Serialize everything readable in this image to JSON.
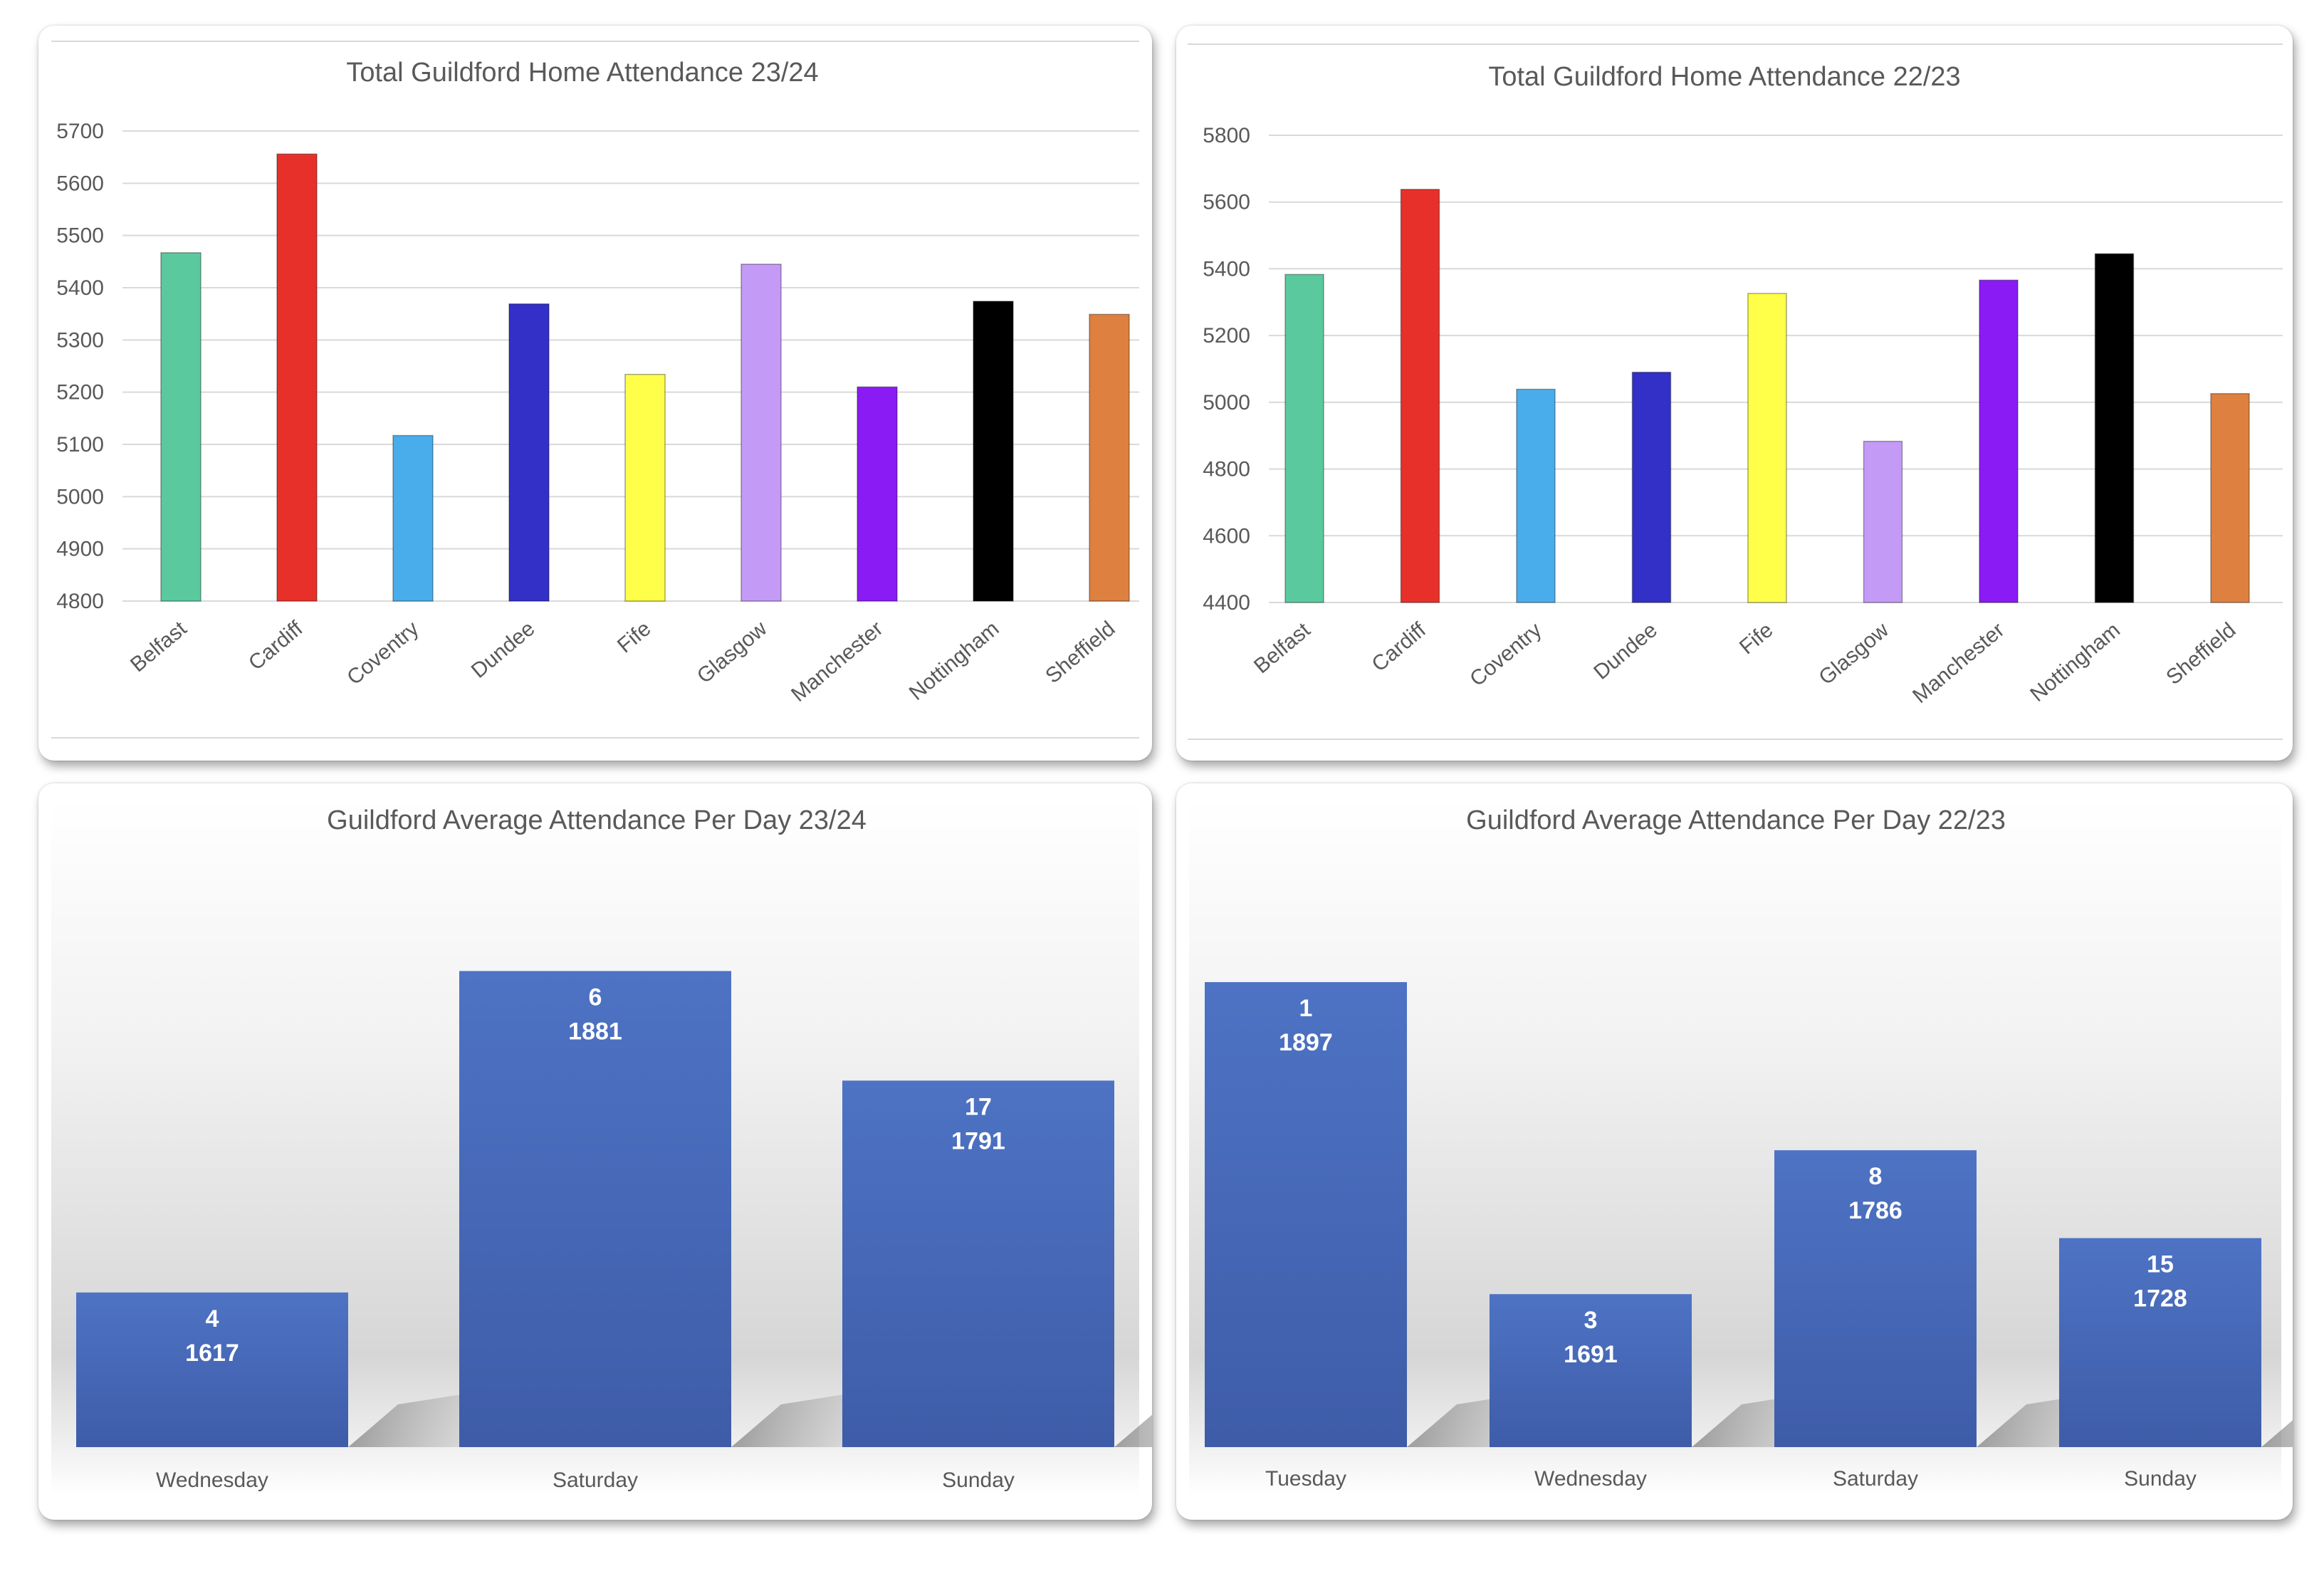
{
  "chart_data": [
    {
      "type": "bar",
      "title": "Total Guildford Home Attendance 23/24",
      "categories": [
        "Belfast",
        "Cardiff",
        "Coventry",
        "Dundee",
        "Fife",
        "Glasgow",
        "Manchester",
        "Nottingham",
        "Sheffield"
      ],
      "values": [
        5467,
        5656,
        5117,
        5369,
        5234,
        5445,
        5210,
        5374,
        5349
      ],
      "colors": [
        "#5bc99e",
        "#e8302a",
        "#4aadeb",
        "#3330c8",
        "#ffff4a",
        "#c39bf7",
        "#8b1bf5",
        "#000000",
        "#de8040"
      ],
      "ylim": [
        4800,
        5700
      ],
      "yticks": [
        "4800",
        "4900",
        "5000",
        "5100",
        "5200",
        "5300",
        "5400",
        "5500",
        "5600",
        "5700"
      ],
      "xlabel": "",
      "ylabel": "",
      "grid": true
    },
    {
      "type": "bar",
      "title": "Total Guildford Home Attendance 22/23",
      "categories": [
        "Belfast",
        "Cardiff",
        "Coventry",
        "Dundee",
        "Fife",
        "Glasgow",
        "Manchester",
        "Nottingham",
        "Sheffield"
      ],
      "values": [
        5383,
        5638,
        5039,
        5090,
        5326,
        4883,
        5366,
        5445,
        5026
      ],
      "colors": [
        "#5bc99e",
        "#e8302a",
        "#4aadeb",
        "#3330c8",
        "#ffff4a",
        "#c39bf7",
        "#8b1bf5",
        "#000000",
        "#de8040"
      ],
      "ylim": [
        4400,
        5800
      ],
      "yticks": [
        "4400",
        "4600",
        "4800",
        "5000",
        "5200",
        "5400",
        "5600",
        "5800"
      ],
      "xlabel": "",
      "ylabel": "",
      "grid": true
    },
    {
      "type": "bar",
      "title": "Guildford Average Attendance Per Day 23/24",
      "categories": [
        "Wednesday",
        "Saturday",
        "Sunday"
      ],
      "counts": [
        "4",
        "6",
        "17"
      ],
      "values": [
        1617,
        1881,
        1791
      ],
      "value_labels": [
        "1617",
        "1881",
        "1791"
      ],
      "ylim": [
        1490,
        2000
      ],
      "xlabel": "",
      "ylabel": ""
    },
    {
      "type": "bar",
      "title": "Guildford Average Attendance Per Day 22/23",
      "categories": [
        "Tuesday",
        "Wednesday",
        "Saturday",
        "Sunday"
      ],
      "counts": [
        "1",
        "3",
        "8",
        "15"
      ],
      "values": [
        1897,
        1691,
        1786,
        1728
      ],
      "value_labels": [
        "1897",
        "1691",
        "1786",
        "1728"
      ],
      "ylim": [
        1590,
        2000
      ],
      "xlabel": "",
      "ylabel": ""
    }
  ],
  "colors": {
    "day_bar_top": "#4e73c4",
    "day_bar_bottom": "#3e5ca8",
    "gridline": "#d9d9d9",
    "text": "#595959"
  }
}
